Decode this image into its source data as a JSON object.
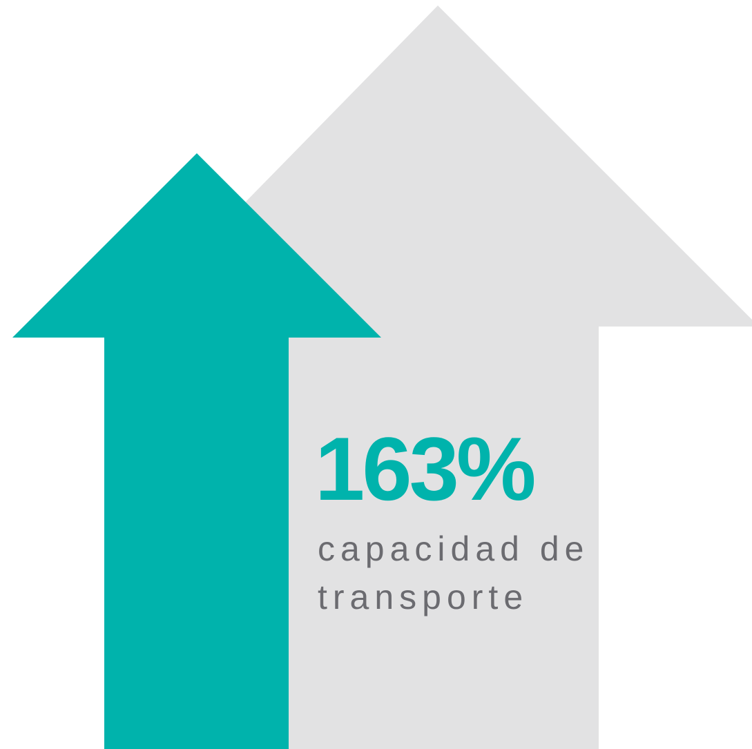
{
  "headline": "163%",
  "caption": [
    "capacidad de",
    "transporte"
  ]
}
